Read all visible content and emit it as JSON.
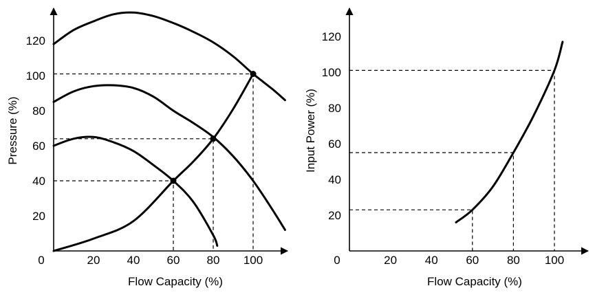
{
  "chart_data": [
    {
      "type": "line",
      "xlabel": "Flow Capacity (%)",
      "ylabel": "Pressure (%)",
      "xticks": [
        "20",
        "40",
        "60",
        "80",
        "100"
      ],
      "yticks": [
        "20",
        "40",
        "60",
        "80",
        "100",
        "120"
      ],
      "origin_label": "0",
      "xlim": [
        0,
        120
      ],
      "ylim": [
        0,
        140
      ],
      "series": [
        {
          "kind": "fan-curve",
          "points": [
            [
              0,
              118
            ],
            [
              10,
              126
            ],
            [
              20,
              131
            ],
            [
              30,
              135
            ],
            [
              40,
              136
            ],
            [
              50,
              134
            ],
            [
              60,
              130
            ],
            [
              70,
              125
            ],
            [
              80,
              119
            ],
            [
              90,
              111
            ],
            [
              100,
              101
            ],
            [
              110,
              92
            ],
            [
              116,
              86
            ]
          ]
        },
        {
          "kind": "fan-curve",
          "points": [
            [
              0,
              85
            ],
            [
              10,
              91
            ],
            [
              20,
              94
            ],
            [
              30,
              94.5
            ],
            [
              40,
              93
            ],
            [
              50,
              88
            ],
            [
              60,
              80
            ],
            [
              70,
              73
            ],
            [
              80,
              65
            ],
            [
              90,
              54
            ],
            [
              100,
              40
            ],
            [
              110,
              23
            ],
            [
              116,
              12
            ]
          ]
        },
        {
          "kind": "fan-curve",
          "points": [
            [
              0,
              60
            ],
            [
              10,
              64
            ],
            [
              20,
              65
            ],
            [
              30,
              62
            ],
            [
              40,
              57
            ],
            [
              50,
              49
            ],
            [
              60,
              40
            ],
            [
              70,
              28
            ],
            [
              80,
              9
            ],
            [
              82,
              3
            ]
          ]
        },
        {
          "kind": "system-curve",
          "points": [
            [
              0,
              0
            ],
            [
              20,
              7
            ],
            [
              40,
              17
            ],
            [
              60,
              40
            ],
            [
              70,
              51
            ],
            [
              80,
              64
            ],
            [
              90,
              81
            ],
            [
              100,
              101
            ]
          ]
        }
      ],
      "markers": [
        [
          60,
          40
        ],
        [
          80,
          64
        ],
        [
          100,
          101
        ]
      ],
      "guides": [
        [
          60,
          40
        ],
        [
          80,
          64
        ],
        [
          100,
          101
        ]
      ]
    },
    {
      "type": "line",
      "xlabel": "Flow Capacity (%)",
      "ylabel": "Input Power (%)",
      "xticks": [
        "20",
        "40",
        "60",
        "80",
        "100"
      ],
      "yticks": [
        "20",
        "40",
        "60",
        "80",
        "100",
        "120"
      ],
      "origin_label": "0",
      "xlim": [
        0,
        120
      ],
      "ylim": [
        0,
        135
      ],
      "series": [
        {
          "kind": "power-curve",
          "points": [
            [
              52,
              16
            ],
            [
              60,
              23
            ],
            [
              70,
              36
            ],
            [
              80,
              55
            ],
            [
              90,
              76
            ],
            [
              100,
              101
            ],
            [
              104,
              117
            ]
          ]
        }
      ],
      "guides": [
        [
          60,
          23
        ],
        [
          80,
          55
        ],
        [
          100,
          101
        ]
      ]
    }
  ]
}
